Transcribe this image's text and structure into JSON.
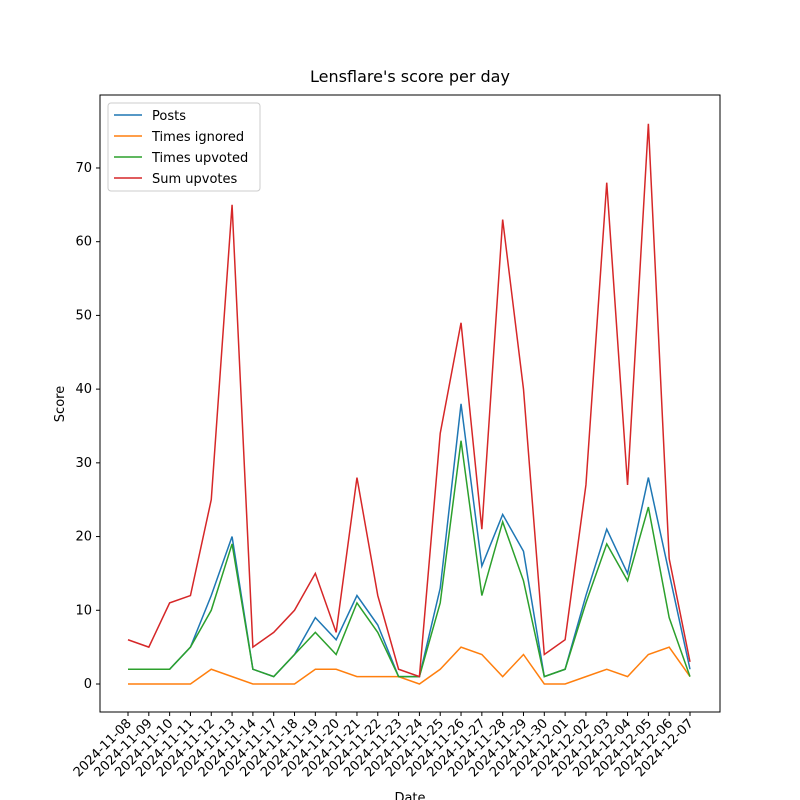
{
  "chart_data": {
    "type": "line",
    "title": "Lensflare's score per day",
    "x_label": "Date",
    "y_label": "Score",
    "categories": [
      "2024-11-08",
      "2024-11-09",
      "2024-11-10",
      "2024-11-11",
      "2024-11-12",
      "2024-11-13",
      "2024-11-14",
      "2024-11-17",
      "2024-11-18",
      "2024-11-19",
      "2024-11-20",
      "2024-11-21",
      "2024-11-22",
      "2024-11-23",
      "2024-11-24",
      "2024-11-25",
      "2024-11-26",
      "2024-11-27",
      "2024-11-28",
      "2024-11-29",
      "2024-11-30",
      "2024-12-01",
      "2024-12-02",
      "2024-12-03",
      "2024-12-04",
      "2024-12-05",
      "2024-12-06",
      "2024-12-07"
    ],
    "series": [
      {
        "name": "Posts",
        "color": "#1f77b4",
        "values": [
          2,
          2,
          2,
          5,
          12,
          20,
          2,
          1,
          4,
          9,
          6,
          12,
          8,
          1,
          1,
          13,
          38,
          16,
          23,
          18,
          1,
          2,
          12,
          21,
          15,
          28,
          15,
          2
        ]
      },
      {
        "name": "Times ignored",
        "color": "#ff7f0e",
        "values": [
          0,
          0,
          0,
          0,
          2,
          1,
          0,
          0,
          0,
          2,
          2,
          1,
          1,
          1,
          0,
          2,
          5,
          4,
          1,
          4,
          0,
          0,
          1,
          2,
          1,
          4,
          5,
          1
        ]
      },
      {
        "name": "Times upvoted",
        "color": "#2ca02c",
        "values": [
          2,
          2,
          2,
          5,
          10,
          19,
          2,
          1,
          4,
          7,
          4,
          11,
          7,
          1,
          1,
          11,
          33,
          12,
          22,
          14,
          1,
          2,
          11,
          19,
          14,
          24,
          9,
          1
        ]
      },
      {
        "name": "Sum upvotes",
        "color": "#d62728",
        "values": [
          6,
          5,
          11,
          12,
          25,
          65,
          5,
          7,
          10,
          15,
          7,
          28,
          12,
          2,
          1,
          34,
          49,
          21,
          63,
          40,
          4,
          6,
          27,
          68,
          27,
          76,
          17,
          3
        ]
      }
    ],
    "ylim": [
      -3.8,
      79.9
    ],
    "yticks": [
      0,
      10,
      20,
      30,
      40,
      50,
      60,
      70
    ],
    "grid": false,
    "legend": "upper left"
  }
}
